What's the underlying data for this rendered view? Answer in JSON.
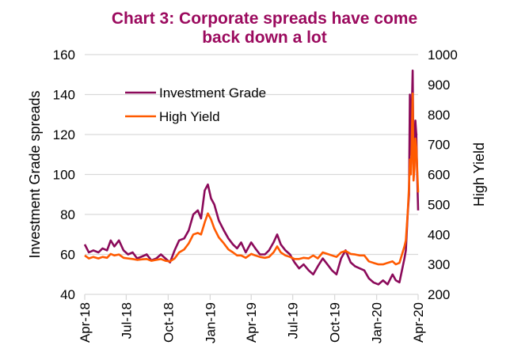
{
  "chart_data": {
    "type": "line",
    "title": "Chart 3: Corporate spreads have come back down a lot",
    "title_lines": [
      "Chart 3: Corporate spreads have come",
      "back down a lot"
    ],
    "xlabel": "",
    "ylabel": "Investment  Grade spreads",
    "y2label": "High Yield",
    "xlim": [
      "2018-04-01",
      "2020-04-01"
    ],
    "x_ticks": [
      {
        "date": "2018-04-01",
        "label": "Apr-18"
      },
      {
        "date": "2018-07-01",
        "label": "Jul-18"
      },
      {
        "date": "2018-10-01",
        "label": "Oct-18"
      },
      {
        "date": "2019-01-01",
        "label": "Jan-19"
      },
      {
        "date": "2019-04-01",
        "label": "Apr-19"
      },
      {
        "date": "2019-07-01",
        "label": "Jul-19"
      },
      {
        "date": "2019-10-01",
        "label": "Oct-19"
      },
      {
        "date": "2020-01-01",
        "label": "Jan-20"
      },
      {
        "date": "2020-04-01",
        "label": "Apr-20"
      }
    ],
    "ylim": [
      40,
      160
    ],
    "y_ticks": [
      40,
      60,
      80,
      100,
      120,
      140,
      160
    ],
    "y2lim": [
      200,
      1000
    ],
    "y2_ticks": [
      200,
      300,
      400,
      500,
      600,
      700,
      800,
      900,
      1000
    ],
    "grid": "horizontal",
    "legend": "top-left",
    "x": [
      "2018-04-01",
      "2018-04-10",
      "2018-04-20",
      "2018-05-01",
      "2018-05-10",
      "2018-05-20",
      "2018-05-28",
      "2018-06-05",
      "2018-06-15",
      "2018-06-25",
      "2018-07-05",
      "2018-07-15",
      "2018-07-25",
      "2018-08-05",
      "2018-08-15",
      "2018-08-25",
      "2018-09-05",
      "2018-09-15",
      "2018-09-25",
      "2018-10-05",
      "2018-10-15",
      "2018-10-25",
      "2018-11-05",
      "2018-11-15",
      "2018-11-25",
      "2018-12-05",
      "2018-12-12",
      "2018-12-20",
      "2018-12-27",
      "2019-01-03",
      "2019-01-10",
      "2019-01-20",
      "2019-01-31",
      "2019-02-10",
      "2019-02-20",
      "2019-03-01",
      "2019-03-10",
      "2019-03-20",
      "2019-04-01",
      "2019-04-10",
      "2019-04-20",
      "2019-05-01",
      "2019-05-10",
      "2019-05-20",
      "2019-05-28",
      "2019-06-05",
      "2019-06-15",
      "2019-06-25",
      "2019-07-05",
      "2019-07-15",
      "2019-07-25",
      "2019-08-05",
      "2019-08-15",
      "2019-08-25",
      "2019-09-05",
      "2019-09-15",
      "2019-09-25",
      "2019-10-05",
      "2019-10-15",
      "2019-10-25",
      "2019-11-05",
      "2019-11-15",
      "2019-11-25",
      "2019-12-05",
      "2019-12-15",
      "2019-12-25",
      "2020-01-05",
      "2020-01-15",
      "2020-01-25",
      "2020-02-05",
      "2020-02-12",
      "2020-02-20",
      "2020-03-02",
      "2020-03-05",
      "2020-03-09",
      "2020-03-12",
      "2020-03-14",
      "2020-03-16",
      "2020-03-18",
      "2020-03-20",
      "2020-03-22",
      "2020-03-24",
      "2020-03-26",
      "2020-03-28",
      "2020-03-30",
      "2020-04-01"
    ],
    "series": [
      {
        "name": "Investment Grade",
        "axis": "left",
        "color": "#8b0a5a",
        "values": [
          65,
          61,
          62,
          61,
          63,
          62,
          67,
          64,
          67,
          62,
          60,
          61,
          58,
          59,
          60,
          57,
          58,
          60,
          58,
          56,
          62,
          67,
          68,
          72,
          80,
          82,
          78,
          92,
          95,
          88,
          85,
          77,
          72,
          68,
          65,
          63,
          66,
          61,
          66,
          63,
          60,
          60,
          62,
          66,
          70,
          65,
          62,
          60,
          56,
          53,
          55,
          52,
          50,
          54,
          58,
          55,
          52,
          50,
          58,
          62,
          56,
          54,
          53,
          52,
          48,
          46,
          45,
          47,
          45,
          50,
          47,
          46,
          58,
          62,
          80,
          90,
          140,
          110,
          130,
          152,
          105,
          115,
          127,
          120,
          100,
          82
        ]
      },
      {
        "name": "High Yield",
        "axis": "right",
        "color": "#ff5a00",
        "values": [
          330,
          320,
          325,
          320,
          325,
          322,
          335,
          330,
          333,
          322,
          320,
          318,
          315,
          317,
          318,
          312,
          315,
          318,
          312,
          310,
          320,
          340,
          350,
          370,
          400,
          405,
          400,
          440,
          470,
          450,
          420,
          390,
          370,
          350,
          340,
          330,
          330,
          322,
          335,
          330,
          325,
          322,
          325,
          340,
          360,
          340,
          330,
          325,
          318,
          318,
          322,
          320,
          330,
          320,
          340,
          335,
          330,
          325,
          340,
          345,
          335,
          333,
          330,
          330,
          310,
          305,
          300,
          300,
          305,
          310,
          300,
          305,
          360,
          380,
          470,
          560,
          650,
          600,
          700,
          870,
          580,
          620,
          720,
          690,
          620,
          540
        ]
      }
    ]
  }
}
